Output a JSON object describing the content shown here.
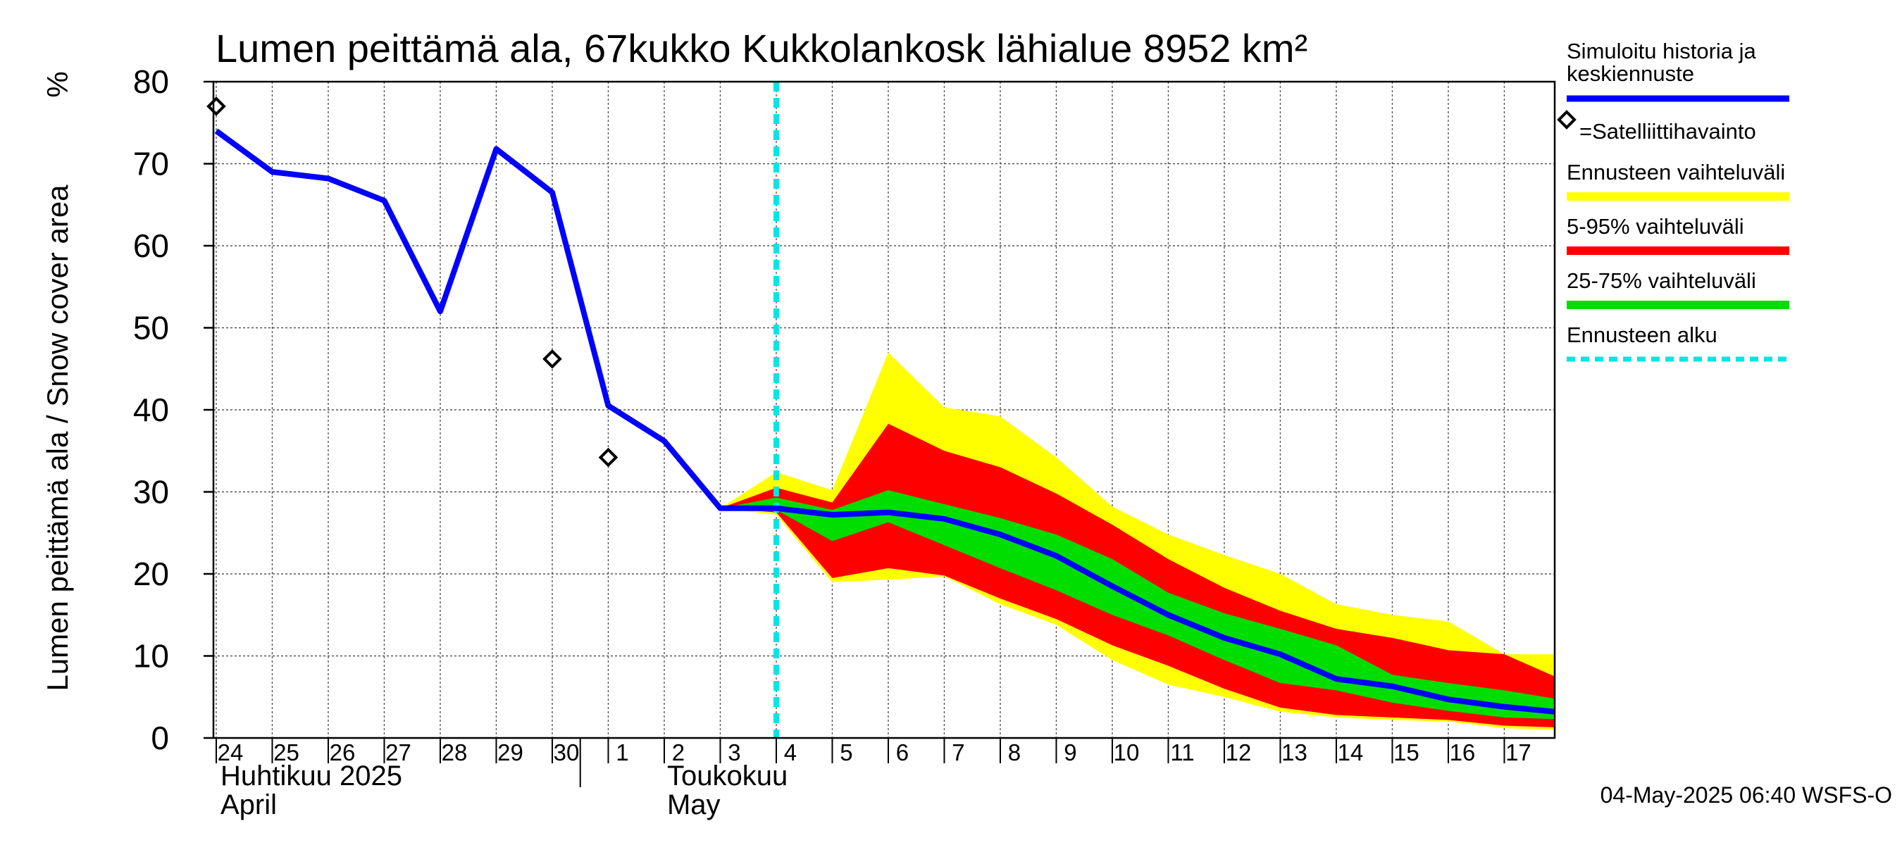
{
  "chart_data": {
    "type": "area",
    "title": "Lumen peittämä ala, 67kukko Kukkolankosk lähialue 8952 km²",
    "ylabel": "Lumen peittämä ala / Snow cover area",
    "yunit": "%",
    "ylim": [
      0,
      80
    ],
    "yticks": [
      0,
      10,
      20,
      30,
      40,
      50,
      60,
      70,
      80
    ],
    "xlim": [
      -0.05,
      23.9
    ],
    "x_labels": [
      "24",
      "25",
      "26",
      "27",
      "28",
      "29",
      "30",
      "1",
      "2",
      "3",
      "4",
      "5",
      "6",
      "7",
      "8",
      "9",
      "10",
      "11",
      "12",
      "13",
      "14",
      "15",
      "16",
      "17"
    ],
    "month_labels": [
      {
        "line1": "Huhtikuu  2025",
        "line2": "April"
      },
      {
        "line1": "Toukokuu",
        "line2": "May"
      }
    ],
    "forecast_start": 10,
    "series": [
      {
        "name": "Simuloitu historia ja keskiennuste",
        "color": "#0000ff",
        "x": [
          0,
          1,
          2,
          3,
          4,
          5,
          6,
          7,
          8,
          9,
          10,
          11,
          12,
          13,
          14,
          15,
          16,
          17,
          18,
          19,
          20,
          21,
          22,
          23,
          23.9
        ],
        "values": [
          74,
          69,
          68.2,
          65.5,
          52,
          71.8,
          66.5,
          40.5,
          36.2,
          28,
          28,
          27.2,
          27.5,
          26.7,
          24.8,
          22.2,
          18.5,
          15,
          12.2,
          10.2,
          7.2,
          6.3,
          4.7,
          3.8,
          3.2
        ]
      },
      {
        "name": "Satelliittihavainto",
        "type": "marker",
        "x": [
          0,
          6,
          7
        ],
        "values": [
          77,
          46.2,
          34.2
        ]
      }
    ],
    "bands": [
      {
        "name": "Ennusteen vaihteluväli",
        "color": "#ffff00",
        "x": [
          9,
          10,
          11,
          12,
          13,
          14,
          15,
          16,
          17,
          18,
          19,
          20,
          21,
          22,
          23,
          23.9
        ],
        "upper": [
          28,
          32.4,
          30.2,
          47,
          40.3,
          39.2,
          34.2,
          28.2,
          24.8,
          22.3,
          20,
          16.3,
          15,
          14.2,
          10.2,
          10.2
        ],
        "lower": [
          28,
          27.2,
          19,
          19.3,
          19.7,
          16.3,
          13.8,
          9.5,
          6.5,
          5,
          3.2,
          2.5,
          2.2,
          2,
          1.2,
          1
        ]
      },
      {
        "name": "5-95% vaihteluväli",
        "color": "#ff0000",
        "x": [
          9,
          10,
          11,
          12,
          13,
          14,
          15,
          16,
          17,
          18,
          19,
          20,
          21,
          22,
          23,
          23.9
        ],
        "upper": [
          28,
          30.5,
          28.7,
          38.3,
          35,
          33,
          29.8,
          26,
          21.8,
          18.3,
          15.5,
          13.3,
          12.2,
          10.7,
          10.2,
          7.5
        ],
        "lower": [
          28,
          27.5,
          19.5,
          20.7,
          19.8,
          17,
          14.5,
          11.3,
          8.8,
          6,
          3.7,
          2.8,
          2.5,
          2.2,
          1.5,
          1.3
        ]
      },
      {
        "name": "25-75% vaihteluväli",
        "color": "#00dd00",
        "x": [
          9,
          10,
          11,
          12,
          13,
          14,
          15,
          16,
          17,
          18,
          19,
          20,
          21,
          22,
          23,
          23.9
        ],
        "upper": [
          28,
          29.3,
          27.8,
          30.2,
          28.5,
          26.8,
          24.8,
          21.8,
          17.7,
          15.2,
          13.3,
          11.3,
          7.7,
          6.7,
          5.8,
          4.8
        ],
        "lower": [
          28,
          27.8,
          24,
          26.3,
          23.5,
          20.7,
          18,
          15,
          12.5,
          9.5,
          6.7,
          5.8,
          4.3,
          3.3,
          2.5,
          2.3
        ]
      }
    ],
    "legend": [
      {
        "label": "Simuloitu historia ja keskiennuste",
        "color": "#0000ff",
        "kind": "line"
      },
      {
        "label": "=Satelliittihavainto",
        "color": "#000000",
        "kind": "marker"
      },
      {
        "label": "Ennusteen vaihteluväli",
        "color": "#ffff00",
        "kind": "line"
      },
      {
        "label": "5-95% vaihteluväli",
        "color": "#ff0000",
        "kind": "line"
      },
      {
        "label": "25-75% vaihteluväli",
        "color": "#00dd00",
        "kind": "line"
      },
      {
        "label": "Ennusteen alku",
        "color": "#00e5e5",
        "kind": "dashed"
      }
    ],
    "grid": true,
    "footer": "04-May-2025 06:40 WSFS-O"
  }
}
